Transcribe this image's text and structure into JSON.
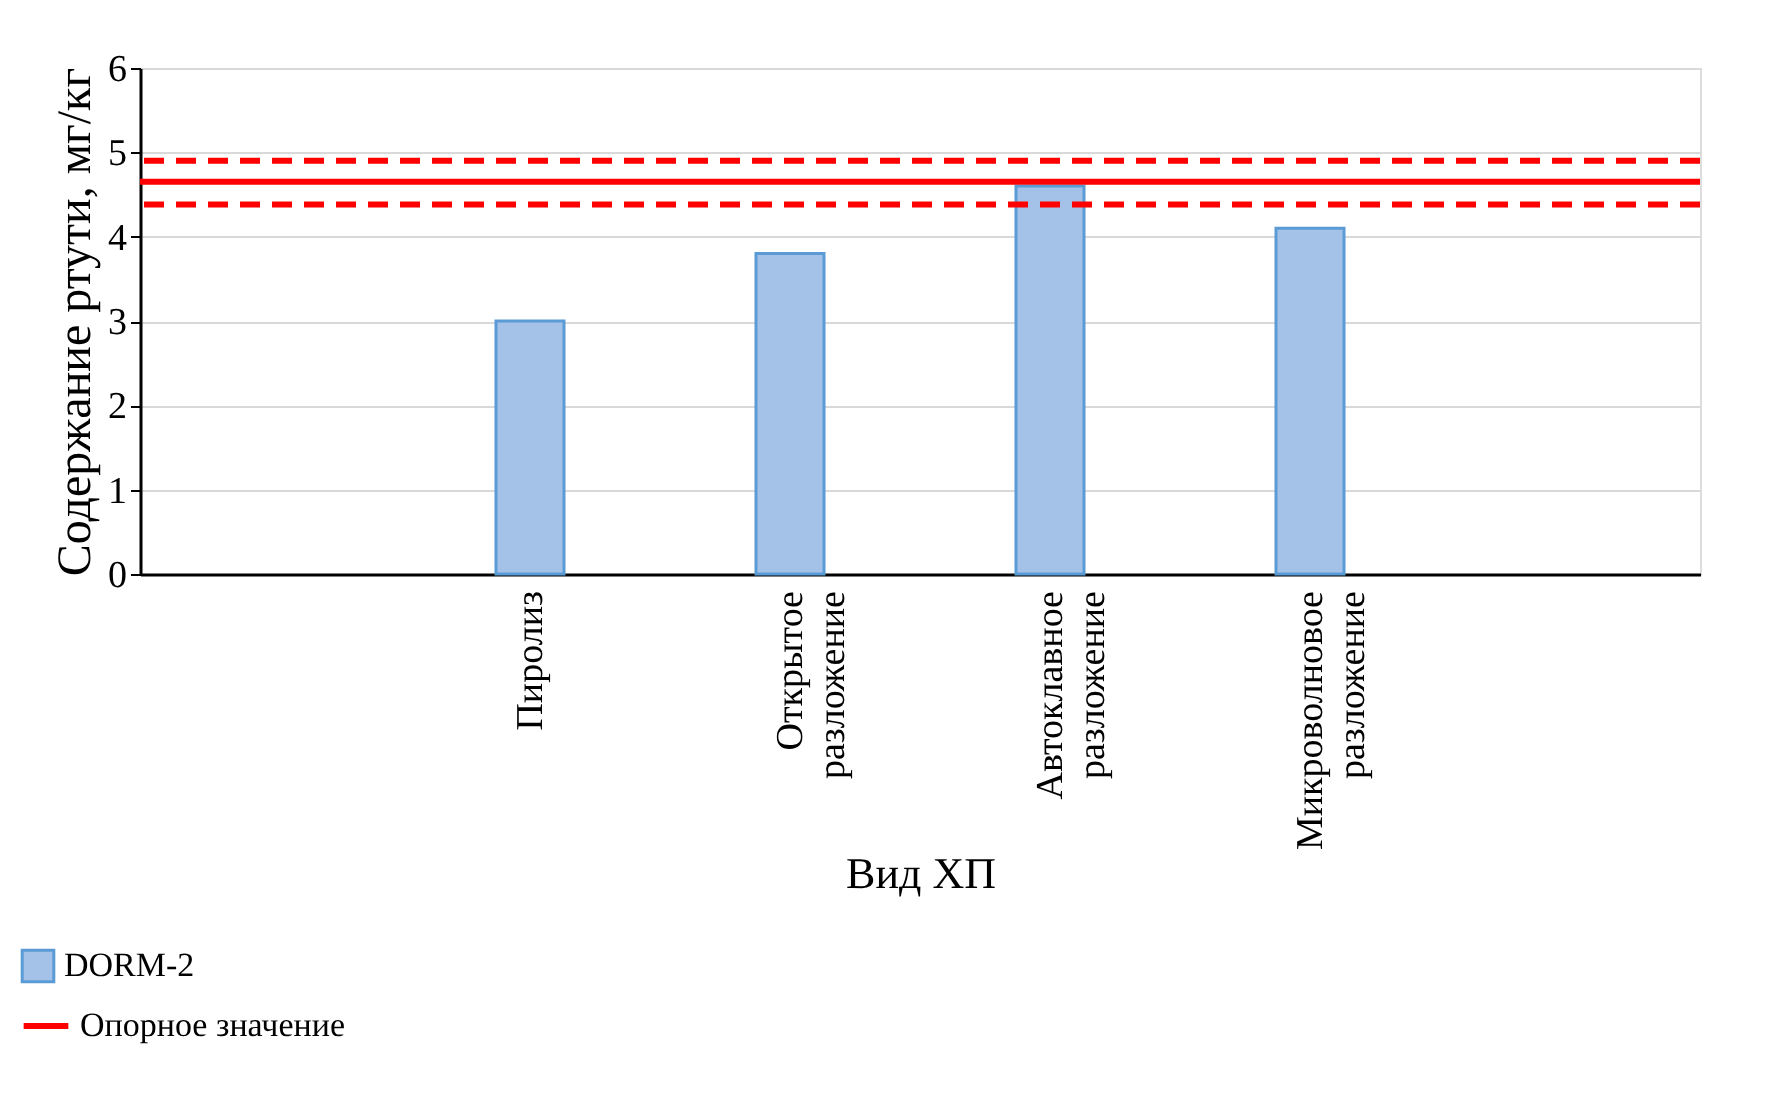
{
  "chart_data": {
    "type": "bar",
    "xlabel": "Вид ХП",
    "ylabel": "Содержание ртути, мг/кг",
    "categories": [
      null,
      "Пиролиз",
      "Открытое разложение",
      "Автоклавное разложение",
      "Микроволновое разложение",
      null
    ],
    "series": [
      {
        "name": "DORM-2",
        "color": "#a4c2e8",
        "values": [
          null,
          3.0,
          3.8,
          4.6,
          4.1,
          null
        ]
      }
    ],
    "ylim": [
      0,
      6
    ],
    "yticks": [
      0,
      1,
      2,
      3,
      4,
      5,
      6
    ],
    "grid": "y",
    "legend": "bottom left",
    "ref_lines": [
      {
        "axis": "y",
        "value": 4.65,
        "label": "Опорное значение",
        "color": "#ff0000",
        "line_style": "solid"
      },
      {
        "axis": "y",
        "value": 4.9,
        "color": "#ff0000",
        "line_style": "dashed"
      },
      {
        "axis": "y",
        "value": 4.38,
        "color": "#ff0000",
        "line_style": "dashed"
      }
    ]
  }
}
